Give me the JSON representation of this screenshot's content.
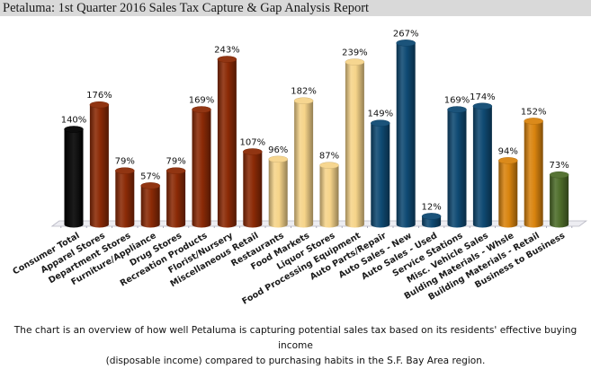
{
  "header": {
    "title": "Petaluma: 1st Quarter 2016 Sales Tax Capture & Gap Analysis Report"
  },
  "caption": {
    "line1": "The chart is an overview of how well Petaluma is capturing potential sales tax based on its residents' effective buying income",
    "line2": "(disposable income) compared to purchasing habits in the S.F. Bay Area region."
  },
  "chart_data": {
    "type": "bar",
    "style": "3d-cylinder",
    "title": "",
    "xlabel": "",
    "ylabel": "",
    "ylim": [
      0,
      280
    ],
    "grid": false,
    "legend": "none",
    "value_suffix": "%",
    "categories": [
      "Consumer Total",
      "Apparel Stores",
      "Department Stores",
      "Furniture/Appliance",
      "Drug Stores",
      "Recreation Products",
      "Florist/Nursery",
      "Miscellaneous Retail",
      "Restaurants",
      "Food Markets",
      "Liquor Stores",
      "Food Processing Equipment",
      "Auto Parts/Repair",
      "Auto Sales - New",
      "Auto Sales - Used",
      "Service Stations",
      "Misc. Vehicle Sales",
      "Bulding Materials - Whsle",
      "Building Materials - Retail",
      "Business to Business"
    ],
    "values": [
      140,
      176,
      79,
      57,
      79,
      169,
      243,
      107,
      96,
      182,
      87,
      239,
      149,
      267,
      12,
      169,
      174,
      94,
      152,
      73
    ],
    "value_labels": [
      "140%",
      "176%",
      "79%",
      "57%",
      "79%",
      "169%",
      "243%",
      "107%",
      "96%",
      "182%",
      "87%",
      "239%",
      "149%",
      "267%",
      "12%",
      "169%",
      "174%",
      "94%",
      "152%",
      "73%"
    ],
    "groups": [
      "total",
      "general",
      "general",
      "general",
      "general",
      "general",
      "general",
      "general",
      "food",
      "food",
      "food",
      "food",
      "auto",
      "auto",
      "auto",
      "auto",
      "auto",
      "building",
      "building",
      "b2b"
    ],
    "group_colors": {
      "total": "#000000",
      "general": "#8b2a06",
      "food": "#f6d48a",
      "auto": "#0f4a73",
      "building": "#d9840f",
      "b2b": "#4e6d2a"
    }
  }
}
